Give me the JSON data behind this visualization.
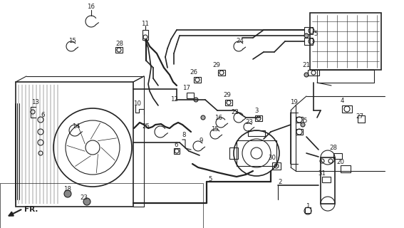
{
  "bg_color": "#ffffff",
  "line_color": "#222222",
  "figsize": [
    5.67,
    3.2
  ],
  "dpi": 100
}
